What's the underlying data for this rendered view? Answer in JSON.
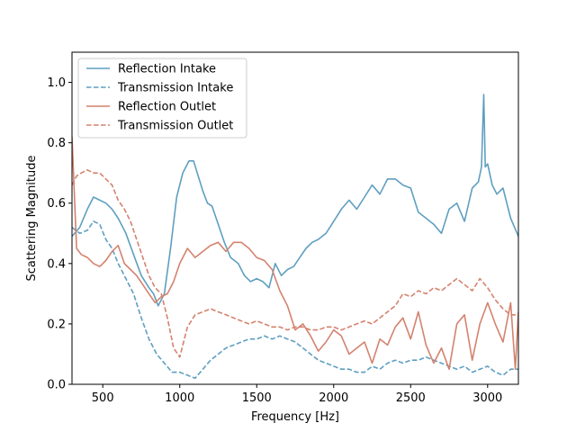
{
  "chart_data": {
    "type": "line",
    "title": "",
    "xlabel": "Frequency [Hz]",
    "ylabel": "Scattering Magnitude",
    "xlim": [
      300,
      3200
    ],
    "ylim": [
      0.0,
      1.1
    ],
    "xticks": [
      500,
      1000,
      1500,
      2000,
      2500,
      3000
    ],
    "yticks": [
      0.0,
      0.2,
      0.4,
      0.6,
      0.8,
      1.0
    ],
    "xtick_labels": [
      "500",
      "1000",
      "1500",
      "2000",
      "2500",
      "3000"
    ],
    "ytick_labels": [
      "0.0",
      "0.2",
      "0.4",
      "0.6",
      "0.8",
      "1.0"
    ],
    "grid": false,
    "legend_position": "top-left",
    "colors": {
      "intake": "#5f9fc0",
      "outlet": "#d4826e"
    },
    "series": [
      {
        "name": "Reflection Intake",
        "color": "#5f9fc0",
        "dash": "solid",
        "x": [
          300,
          350,
          400,
          440,
          480,
          520,
          560,
          600,
          650,
          700,
          750,
          800,
          830,
          860,
          900,
          940,
          980,
          1020,
          1060,
          1090,
          1120,
          1150,
          1180,
          1210,
          1250,
          1290,
          1330,
          1380,
          1420,
          1460,
          1500,
          1540,
          1580,
          1620,
          1660,
          1700,
          1740,
          1780,
          1820,
          1860,
          1900,
          1950,
          2000,
          2050,
          2100,
          2150,
          2200,
          2250,
          2300,
          2350,
          2400,
          2450,
          2500,
          2550,
          2600,
          2650,
          2700,
          2750,
          2800,
          2850,
          2900,
          2940,
          2960,
          2975,
          2985,
          3000,
          3030,
          3060,
          3100,
          3150,
          3200
        ],
        "y": [
          0.49,
          0.52,
          0.58,
          0.62,
          0.61,
          0.6,
          0.58,
          0.55,
          0.5,
          0.43,
          0.36,
          0.32,
          0.3,
          0.26,
          0.3,
          0.45,
          0.62,
          0.7,
          0.74,
          0.74,
          0.69,
          0.64,
          0.6,
          0.59,
          0.53,
          0.47,
          0.42,
          0.4,
          0.36,
          0.34,
          0.35,
          0.34,
          0.32,
          0.4,
          0.36,
          0.38,
          0.39,
          0.42,
          0.45,
          0.47,
          0.48,
          0.5,
          0.54,
          0.58,
          0.61,
          0.58,
          0.62,
          0.66,
          0.63,
          0.68,
          0.68,
          0.66,
          0.65,
          0.57,
          0.55,
          0.53,
          0.5,
          0.58,
          0.6,
          0.54,
          0.65,
          0.67,
          0.72,
          0.96,
          0.72,
          0.73,
          0.66,
          0.63,
          0.65,
          0.55,
          0.49
        ]
      },
      {
        "name": "Transmission Intake",
        "color": "#5f9fc0",
        "dash": "dashed",
        "x": [
          300,
          350,
          400,
          440,
          480,
          520,
          560,
          600,
          650,
          700,
          750,
          800,
          850,
          900,
          950,
          1000,
          1050,
          1100,
          1150,
          1200,
          1250,
          1300,
          1350,
          1400,
          1450,
          1500,
          1550,
          1600,
          1650,
          1700,
          1750,
          1800,
          1850,
          1900,
          1950,
          2000,
          2050,
          2100,
          2150,
          2200,
          2250,
          2300,
          2350,
          2400,
          2450,
          2500,
          2550,
          2600,
          2650,
          2700,
          2750,
          2800,
          2850,
          2900,
          2950,
          3000,
          3050,
          3100,
          3150,
          3200
        ],
        "y": [
          0.52,
          0.5,
          0.51,
          0.54,
          0.53,
          0.48,
          0.45,
          0.4,
          0.35,
          0.3,
          0.22,
          0.15,
          0.1,
          0.07,
          0.04,
          0.04,
          0.03,
          0.02,
          0.05,
          0.08,
          0.1,
          0.12,
          0.13,
          0.14,
          0.15,
          0.15,
          0.16,
          0.15,
          0.16,
          0.15,
          0.14,
          0.12,
          0.1,
          0.08,
          0.07,
          0.06,
          0.05,
          0.05,
          0.04,
          0.04,
          0.06,
          0.05,
          0.07,
          0.08,
          0.07,
          0.08,
          0.08,
          0.09,
          0.08,
          0.07,
          0.06,
          0.05,
          0.06,
          0.04,
          0.05,
          0.06,
          0.04,
          0.03,
          0.05,
          0.05
        ]
      },
      {
        "name": "Reflection Outlet",
        "color": "#d4826e",
        "dash": "solid",
        "x": [
          300,
          330,
          360,
          400,
          440,
          480,
          520,
          560,
          600,
          640,
          680,
          720,
          760,
          800,
          840,
          880,
          920,
          960,
          1000,
          1050,
          1100,
          1150,
          1200,
          1250,
          1300,
          1350,
          1400,
          1450,
          1500,
          1550,
          1600,
          1650,
          1700,
          1750,
          1800,
          1850,
          1900,
          1950,
          2000,
          2050,
          2100,
          2150,
          2200,
          2250,
          2300,
          2350,
          2400,
          2450,
          2500,
          2550,
          2600,
          2650,
          2700,
          2750,
          2800,
          2850,
          2900,
          2950,
          3000,
          3050,
          3100,
          3150,
          3180,
          3200
        ],
        "y": [
          0.82,
          0.45,
          0.43,
          0.42,
          0.4,
          0.39,
          0.41,
          0.44,
          0.46,
          0.4,
          0.38,
          0.36,
          0.33,
          0.3,
          0.27,
          0.29,
          0.3,
          0.34,
          0.4,
          0.45,
          0.42,
          0.44,
          0.46,
          0.47,
          0.44,
          0.47,
          0.47,
          0.45,
          0.42,
          0.41,
          0.38,
          0.31,
          0.26,
          0.18,
          0.2,
          0.16,
          0.11,
          0.14,
          0.18,
          0.16,
          0.1,
          0.12,
          0.14,
          0.07,
          0.15,
          0.13,
          0.19,
          0.22,
          0.15,
          0.24,
          0.13,
          0.07,
          0.12,
          0.05,
          0.2,
          0.23,
          0.08,
          0.2,
          0.27,
          0.2,
          0.14,
          0.27,
          0.05,
          0.24
        ]
      },
      {
        "name": "Transmission Outlet",
        "color": "#d4826e",
        "dash": "dashed",
        "x": [
          300,
          330,
          360,
          400,
          440,
          480,
          520,
          560,
          600,
          640,
          680,
          720,
          760,
          800,
          840,
          880,
          920,
          960,
          1000,
          1050,
          1100,
          1150,
          1200,
          1250,
          1300,
          1350,
          1400,
          1450,
          1500,
          1550,
          1600,
          1650,
          1700,
          1750,
          1800,
          1850,
          1900,
          1950,
          2000,
          2050,
          2100,
          2150,
          2200,
          2250,
          2300,
          2350,
          2400,
          2450,
          2500,
          2550,
          2600,
          2650,
          2700,
          2750,
          2800,
          2850,
          2900,
          2950,
          3000,
          3050,
          3100,
          3150,
          3200
        ],
        "y": [
          0.66,
          0.69,
          0.7,
          0.71,
          0.7,
          0.7,
          0.68,
          0.66,
          0.61,
          0.58,
          0.54,
          0.48,
          0.42,
          0.36,
          0.32,
          0.3,
          0.22,
          0.12,
          0.09,
          0.19,
          0.23,
          0.24,
          0.25,
          0.24,
          0.23,
          0.22,
          0.21,
          0.2,
          0.21,
          0.2,
          0.19,
          0.19,
          0.18,
          0.19,
          0.19,
          0.18,
          0.18,
          0.19,
          0.19,
          0.18,
          0.19,
          0.2,
          0.21,
          0.2,
          0.22,
          0.24,
          0.26,
          0.3,
          0.29,
          0.31,
          0.3,
          0.32,
          0.31,
          0.33,
          0.35,
          0.33,
          0.31,
          0.35,
          0.32,
          0.28,
          0.25,
          0.23,
          0.23
        ]
      }
    ]
  }
}
